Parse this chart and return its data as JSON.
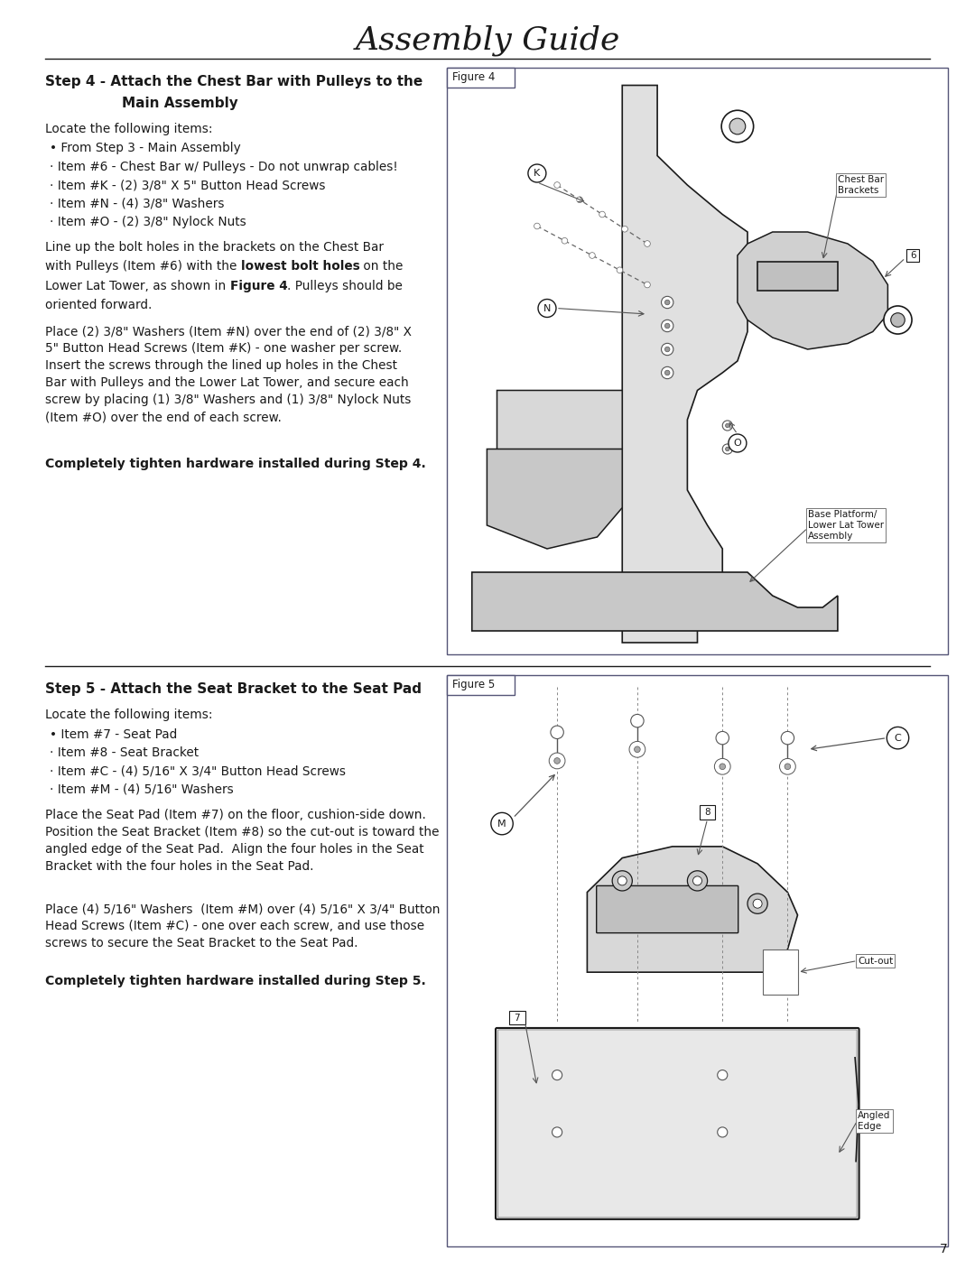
{
  "title": "Assembly Guide",
  "bg_color": "#ffffff",
  "text_color": "#1a1a1a",
  "page_number": "7",
  "step4": {
    "heading_line1": "Step 4 - Attach the Chest Bar with Pulleys to the",
    "heading_line2": "Main Assembly",
    "locate": "Locate the following items:",
    "bullets": [
      "• From Step 3 - Main Assembly",
      "· Item #6 - Chest Bar w/ Pulleys - Do not unwrap cables!",
      "· Item #K - (2) 3/8\" X 5\" Button Head Screws",
      "· Item #N - (4) 3/8\" Washers",
      "· Item #O - (2) 3/8\" Nylock Nuts"
    ],
    "para1_normal1": "Line up the bolt holes in the brackets on the Chest Bar",
    "para1_normal2": "with Pulleys (Item #6) with the ",
    "para1_bold1": "lowest bolt holes",
    "para1_normal3": " on the",
    "para1_normal4": "Lower Lat Tower, as shown in ",
    "para1_bold2": "Figure 4",
    "para1_normal5": ". Pulleys should be",
    "para1_normal6": "oriented forward.",
    "para2": "Place (2) 3/8\" Washers (Item #N) over the end of (2) 3/8\" X\n5\" Button Head Screws (Item #K) - one washer per screw.\nInsert the screws through the lined up holes in the Chest\nBar with Pulleys and the Lower Lat Tower, and secure each\nscrew by placing (1) 3/8\" Washers and (1) 3/8\" Nylock Nuts\n(Item #O) over the end of each screw.",
    "bold_note": "Completely tighten hardware installed during Step 4."
  },
  "step5": {
    "heading_line1": "Step 5 - Attach the Seat Bracket to the Seat Pad",
    "locate": "Locate the following items:",
    "bullets": [
      "• Item #7 - Seat Pad",
      "· Item #8 - Seat Bracket",
      "· Item #C - (4) 5/16\" X 3/4\" Button Head Screws",
      "· Item #M - (4) 5/16\" Washers"
    ],
    "para1": "Place the Seat Pad (Item #7) on the floor, cushion-side down.\nPosition the Seat Bracket (Item #8) so the cut-out is toward the\nangled edge of the Seat Pad.  Align the four holes in the Seat\nBracket with the four holes in the Seat Pad.",
    "para2": "Place (4) 5/16\" Washers  (Item #M) over (4) 5/16\" X 3/4\" Button\nHead Screws (Item #C) - one over each screw, and use those\nscrews to secure the Seat Bracket to the Seat Pad.",
    "bold_note": "Completely tighten hardware installed during Step 5."
  }
}
